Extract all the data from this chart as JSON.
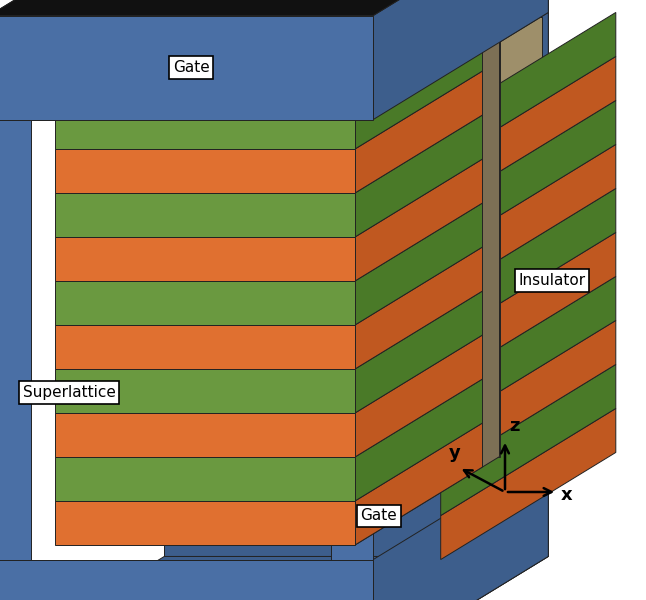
{
  "colors": {
    "gate_blue_front": "#4a6fa5",
    "gate_blue_side": "#3d5e8c",
    "gate_top_black": "#111111",
    "insulator_front": "#9e8f6a",
    "insulator_side": "#7d7055",
    "orange_front": "#e07030",
    "orange_side": "#c05820",
    "green_front": "#6a9940",
    "green_side": "#4a7a28",
    "brown_top": "#6a2010",
    "salmon_side": "#cc7050",
    "white": "#ffffff",
    "black": "#000000"
  },
  "labels": {
    "gate": "Gate",
    "insulator": "Insulator",
    "superlattice": "Superlattice",
    "x": "x",
    "y": "y",
    "z": "z"
  },
  "figsize": [
    6.46,
    6.0
  ],
  "dpi": 100
}
